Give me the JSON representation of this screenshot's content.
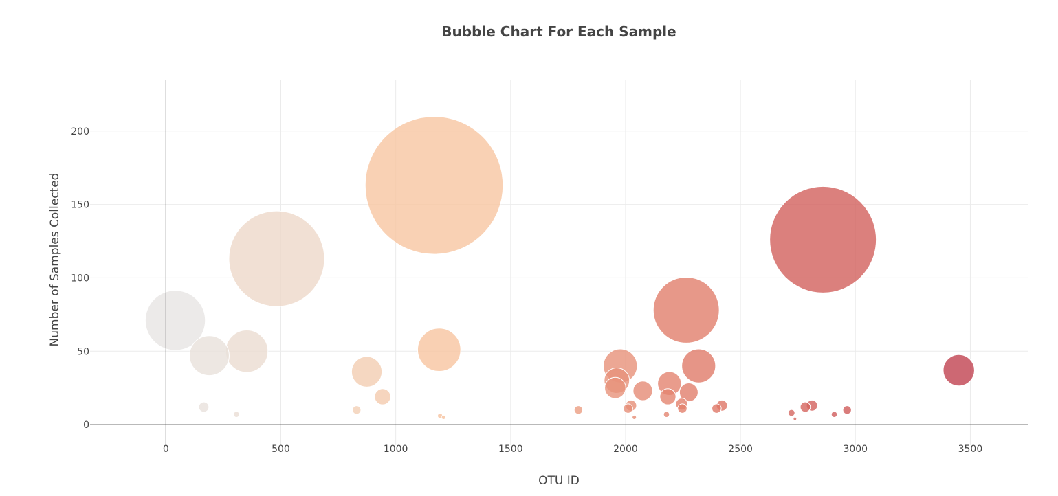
{
  "chart_data": {
    "type": "scatter",
    "title": "Bubble Chart For Each Sample",
    "xlabel": "OTU ID",
    "ylabel": "Number of Samples Collected",
    "xlim": [
      -330,
      3750
    ],
    "ylim": [
      -14,
      235
    ],
    "xticks": [
      0,
      500,
      1000,
      1500,
      2000,
      2500,
      3000,
      3500
    ],
    "yticks": [
      0,
      50,
      100,
      150,
      200
    ],
    "grid": true,
    "legend": "none",
    "colorscale": [
      "#e6e6e6",
      "#f7c5a1",
      "#e07a68",
      "#c0404f"
    ],
    "points": [
      {
        "x": 41,
        "y": 71
      },
      {
        "x": 189,
        "y": 47
      },
      {
        "x": 165,
        "y": 12
      },
      {
        "x": 352,
        "y": 50
      },
      {
        "x": 307,
        "y": 7
      },
      {
        "x": 482,
        "y": 113
      },
      {
        "x": 830,
        "y": 10
      },
      {
        "x": 874,
        "y": 36
      },
      {
        "x": 943,
        "y": 19
      },
      {
        "x": 1167,
        "y": 163
      },
      {
        "x": 1189,
        "y": 51
      },
      {
        "x": 1193,
        "y": 6
      },
      {
        "x": 1208,
        "y": 5
      },
      {
        "x": 1795,
        "y": 10
      },
      {
        "x": 1977,
        "y": 40
      },
      {
        "x": 1962,
        "y": 30
      },
      {
        "x": 1955,
        "y": 25
      },
      {
        "x": 2011,
        "y": 11
      },
      {
        "x": 2024,
        "y": 13
      },
      {
        "x": 2038,
        "y": 5
      },
      {
        "x": 2075,
        "y": 23
      },
      {
        "x": 2178,
        "y": 7
      },
      {
        "x": 2184,
        "y": 19
      },
      {
        "x": 2191,
        "y": 28
      },
      {
        "x": 2244,
        "y": 14
      },
      {
        "x": 2247,
        "y": 11
      },
      {
        "x": 2264,
        "y": 78
      },
      {
        "x": 2275,
        "y": 22
      },
      {
        "x": 2318,
        "y": 40
      },
      {
        "x": 2396,
        "y": 11
      },
      {
        "x": 2419,
        "y": 13
      },
      {
        "x": 2722,
        "y": 8
      },
      {
        "x": 2737,
        "y": 4
      },
      {
        "x": 2782,
        "y": 12
      },
      {
        "x": 2811,
        "y": 13
      },
      {
        "x": 2859,
        "y": 126
      },
      {
        "x": 2908,
        "y": 7
      },
      {
        "x": 2964,
        "y": 10
      },
      {
        "x": 3450,
        "y": 37
      }
    ]
  }
}
